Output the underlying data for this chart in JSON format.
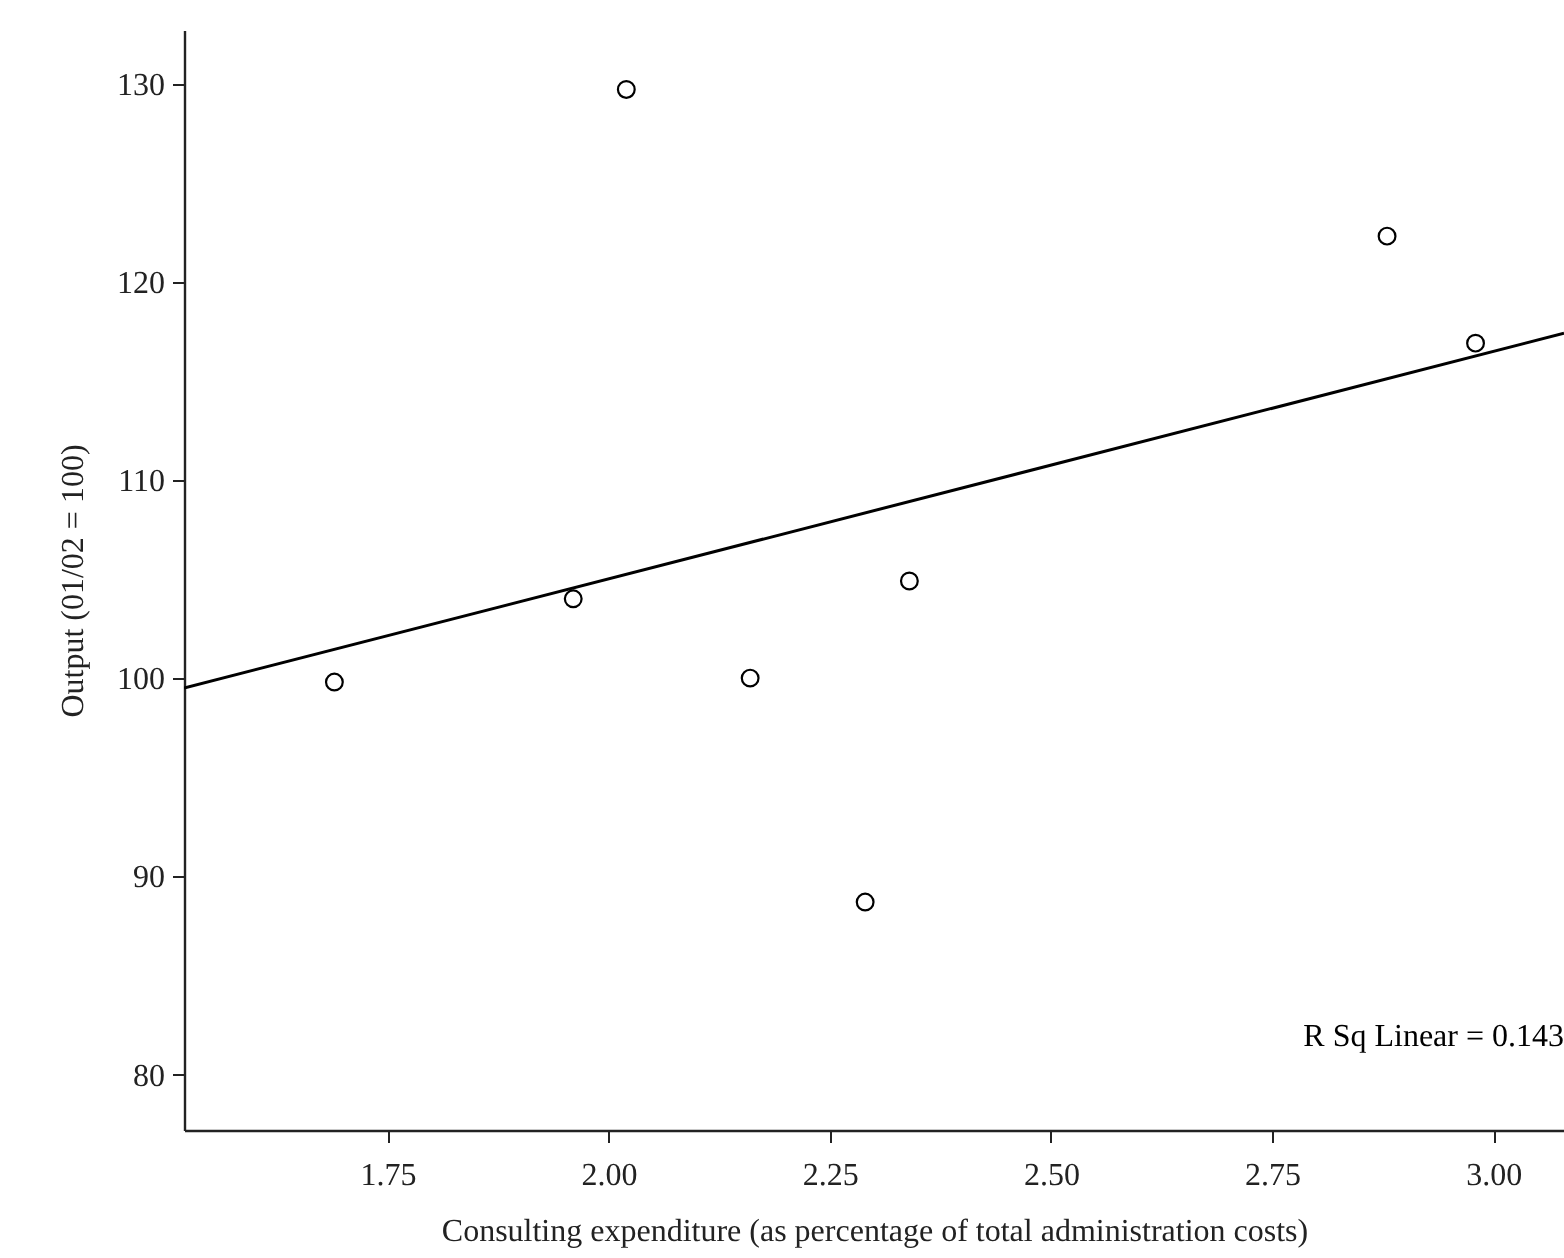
{
  "chart_data": {
    "type": "scatter",
    "xlabel": "Consulting expenditure (as percentage of total administration costs)",
    "ylabel": "Output (01/02 = 100)",
    "xlim": [
      1.52,
      3.08
    ],
    "ylim": [
      77.2,
      132.7
    ],
    "xticks": [
      {
        "value": 1.75,
        "label": "1.75"
      },
      {
        "value": 2,
        "label": "2.00"
      },
      {
        "value": 2.25,
        "label": "2.25"
      },
      {
        "value": 2.5,
        "label": "2.50"
      },
      {
        "value": 2.75,
        "label": "2.75"
      },
      {
        "value": 3,
        "label": "3.00"
      }
    ],
    "yticks": [
      80,
      90,
      100,
      110,
      120,
      130
    ],
    "grid": false,
    "annotations": [
      "R Sq Linear = 0.143"
    ],
    "series": [
      {
        "marker": "circle",
        "color": "#000000",
        "x": [
          1.69,
          1.96,
          2.02,
          2.16,
          2.29,
          2.34,
          2.88,
          2.98
        ],
        "values": [
          99.8,
          104.0,
          129.7,
          100.0,
          88.7,
          104.9,
          122.3,
          116.9
        ]
      },
      {
        "type": "line",
        "color": "#000000",
        "x": [
          1.52,
          3.08
        ],
        "values": [
          99.5,
          117.4
        ]
      }
    ]
  }
}
